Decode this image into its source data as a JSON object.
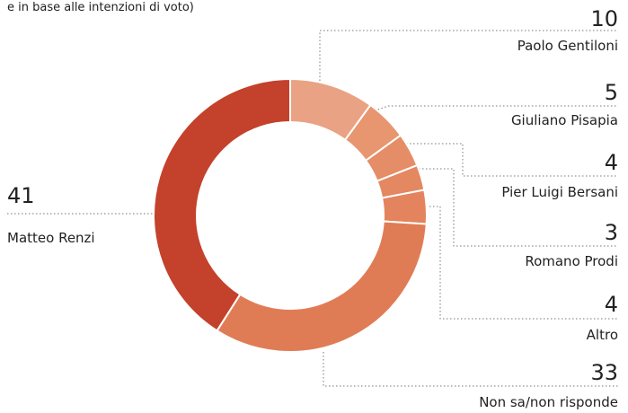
{
  "chart_data": {
    "type": "donut",
    "subtitle": "e in base alle intenzioni di voto)",
    "categories": [
      "Paolo Gentiloni",
      "Giuliano Pisapia",
      "Pier Luigi Bersani",
      "Romano Prodi",
      "Altro",
      "Non sa/non risponde",
      "Matteo Renzi"
    ],
    "values": [
      10,
      5,
      4,
      3,
      4,
      33,
      41
    ],
    "colors": [
      "#e9a283",
      "#e8966f",
      "#e58d67",
      "#e48862",
      "#e3845e",
      "#e07c55",
      "#c4412c"
    ]
  }
}
